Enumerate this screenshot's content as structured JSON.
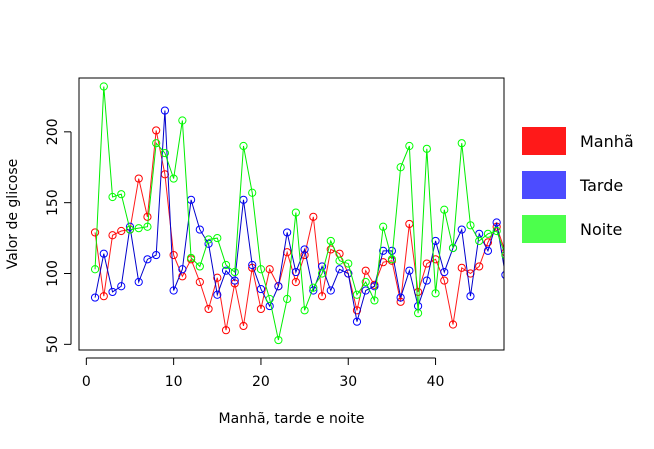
{
  "chart_data": {
    "type": "line",
    "xlabel": "Manhã, tarde e noite",
    "ylabel": "Valor de glicose",
    "xlim": [
      -0.84,
      47.84
    ],
    "ylim": [
      46,
      238
    ],
    "x_ticks": [
      0,
      10,
      20,
      30,
      40
    ],
    "y_ticks": [
      50,
      100,
      150,
      200
    ],
    "legend_position": "right",
    "x": [
      1,
      2,
      3,
      4,
      5,
      6,
      7,
      8,
      9,
      10,
      11,
      12,
      13,
      14,
      15,
      16,
      17,
      18,
      19,
      20,
      21,
      22,
      23,
      24,
      25,
      26,
      27,
      28,
      29,
      30,
      31,
      32,
      33,
      34,
      35,
      36,
      37,
      38,
      39,
      40,
      41,
      42,
      43,
      44,
      45,
      46,
      47,
      48
    ],
    "series": [
      {
        "name": "Manhã",
        "color": "#ff1a1a",
        "marker_color": "#ff0000",
        "values": [
          129,
          84,
          127,
          130,
          131,
          167,
          140,
          201,
          170,
          113,
          98,
          110,
          94,
          75,
          97,
          60,
          93,
          63,
          104,
          75,
          103,
          91,
          115,
          94,
          113,
          140,
          84,
          117,
          114,
          100,
          74,
          102,
          92,
          108,
          109,
          80,
          135,
          87,
          107,
          110,
          95,
          64,
          104,
          100,
          105,
          122,
          133,
          115
        ]
      },
      {
        "name": "Tarde",
        "color": "#0000cc",
        "marker_color": "#0000ff",
        "values": [
          83,
          114,
          87,
          91,
          133,
          94,
          110,
          113,
          215,
          88,
          103,
          152,
          131,
          121,
          85,
          102,
          95,
          152,
          106,
          89,
          77,
          91,
          129,
          101,
          117,
          88,
          105,
          88,
          103,
          100,
          66,
          88,
          91,
          116,
          116,
          83,
          102,
          77,
          95,
          123,
          101,
          118,
          131,
          84,
          128,
          116,
          136,
          99
        ]
      },
      {
        "name": "Noite",
        "color": "#00ee00",
        "marker_color": "#00ff00",
        "values": [
          103,
          232,
          154,
          156,
          131,
          132,
          133,
          192,
          185,
          167,
          208,
          111,
          105,
          124,
          125,
          106,
          101,
          190,
          157,
          103,
          82,
          53,
          82,
          143,
          74,
          90,
          100,
          123,
          109,
          107,
          85,
          94,
          81,
          133,
          110,
          175,
          190,
          72,
          188,
          86,
          145,
          118,
          192,
          134,
          123,
          128,
          130,
          113
        ]
      }
    ]
  }
}
